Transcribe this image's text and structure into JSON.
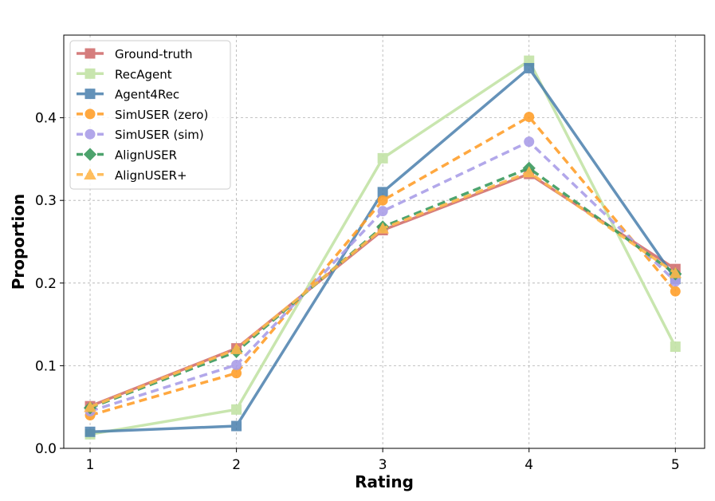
{
  "chart_data": {
    "type": "line",
    "title": "",
    "xlabel": "Rating",
    "ylabel": "Proportion",
    "x": [
      1,
      2,
      3,
      4,
      5
    ],
    "x_tick_labels": [
      "1",
      "2",
      "3",
      "4",
      "5"
    ],
    "y_ticks": [
      0.0,
      0.1,
      0.2,
      0.3,
      0.4
    ],
    "y_tick_labels": [
      "0.0",
      "0.1",
      "0.2",
      "0.3",
      "0.4"
    ],
    "xlim": [
      0.82,
      5.2
    ],
    "ylim": [
      0.0,
      0.5
    ],
    "grid": true,
    "legend_position": "top-left",
    "series": [
      {
        "name": "Ground-truth",
        "values": [
          0.051,
          0.121,
          0.264,
          0.332,
          0.217
        ],
        "color": "#d1706f",
        "marker": "square",
        "dashed": false,
        "opacity": 0.9
      },
      {
        "name": "RecAgent",
        "values": [
          0.017,
          0.047,
          0.351,
          0.469,
          0.123
        ],
        "color": "#c3e3a6",
        "marker": "square",
        "dashed": false,
        "opacity": 0.9
      },
      {
        "name": "Agent4Rec",
        "values": [
          0.02,
          0.027,
          0.31,
          0.46,
          0.205
        ],
        "color": "#4a7fad",
        "marker": "square",
        "dashed": false,
        "opacity": 0.85
      },
      {
        "name": "SimUSER (zero)",
        "values": [
          0.04,
          0.091,
          0.3,
          0.401,
          0.19
        ],
        "color": "#ff9f2b",
        "marker": "circle",
        "dashed": true,
        "opacity": 0.9
      },
      {
        "name": "SimUSER (sim)",
        "values": [
          0.045,
          0.101,
          0.287,
          0.371,
          0.202
        ],
        "color": "#aa9ee8",
        "marker": "circle",
        "dashed": true,
        "opacity": 0.9
      },
      {
        "name": "AlignUSER",
        "values": [
          0.049,
          0.117,
          0.268,
          0.339,
          0.211
        ],
        "color": "#3a9a5e",
        "marker": "diamond",
        "dashed": true,
        "opacity": 0.9
      },
      {
        "name": "AlignUSER+",
        "values": [
          0.05,
          0.12,
          0.266,
          0.334,
          0.212
        ],
        "color": "#ffb84d",
        "marker": "triangle",
        "dashed": true,
        "opacity": 0.9
      }
    ]
  }
}
